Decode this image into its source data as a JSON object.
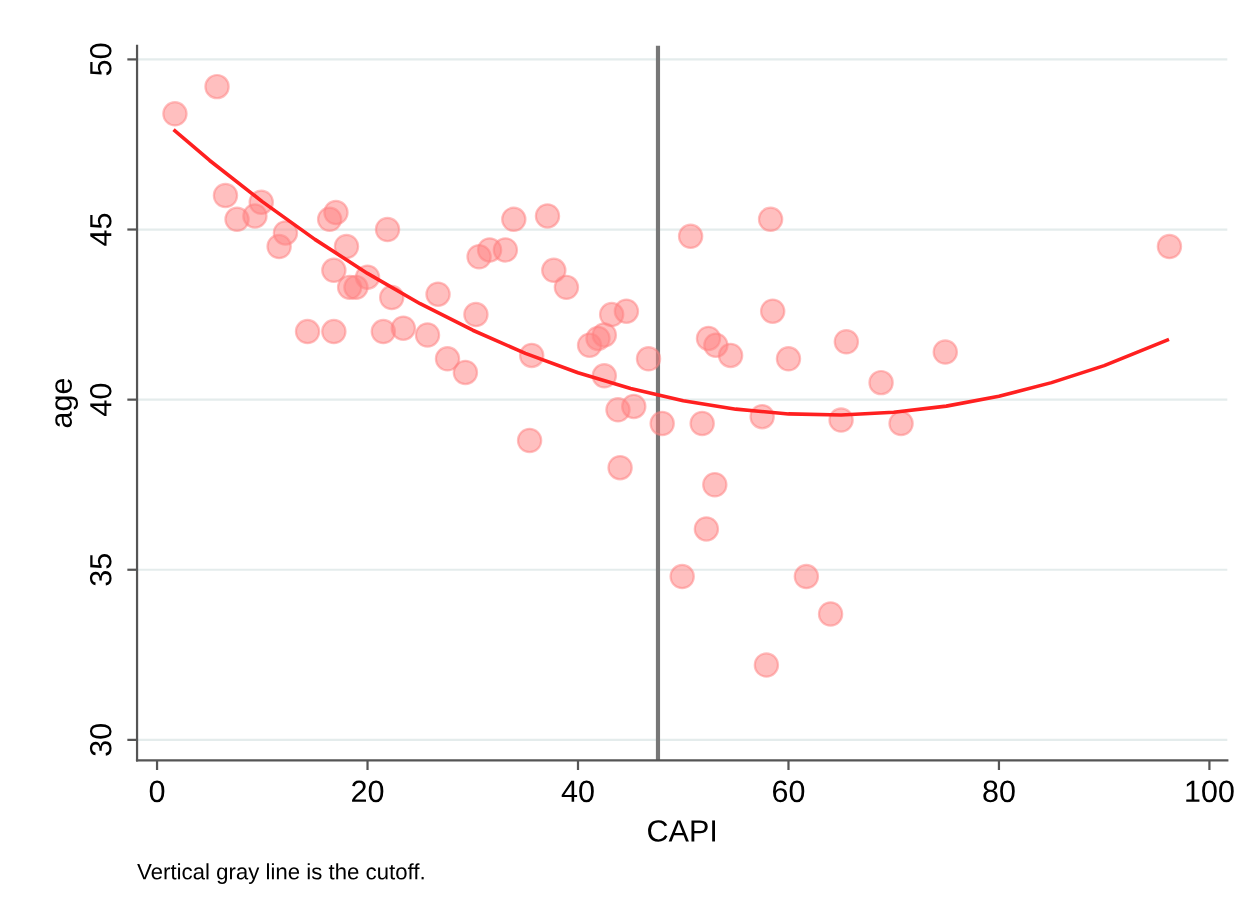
{
  "chart_data": {
    "type": "scatter",
    "xlabel": "CAPI",
    "ylabel": "age",
    "xlim": [
      -1.9,
      101.7
    ],
    "ylim": [
      29.4,
      50.4
    ],
    "xticks": [
      0,
      20,
      40,
      60,
      80,
      100
    ],
    "yticks": [
      30,
      35,
      40,
      45,
      50
    ],
    "grid": "y",
    "ref_lines": [
      {
        "axis": "x",
        "value": 47.6,
        "color": "#777777"
      }
    ],
    "annotations": [
      "Vertical gray line is the cutoff."
    ],
    "series": [
      {
        "color": "#ff8080",
        "marker": "circle",
        "x": [
          1.7,
          5.7,
          6.5,
          7.6,
          9.3,
          9.9,
          11.6,
          12.2,
          14.3,
          16.4,
          17,
          16.8,
          16.8,
          18,
          18.3,
          18.9,
          20,
          21.9,
          21.5,
          22.3,
          23.4,
          25.7,
          26.7,
          27.6,
          29.3,
          30.3,
          30.6,
          31.6,
          33.1,
          33.9,
          35.6,
          35.4,
          37.1,
          37.7,
          38.9,
          41.1,
          41.9,
          42.5,
          42.5,
          43.2,
          44.6,
          43.8,
          45.3,
          44,
          46.7,
          48,
          50.7,
          49.9,
          51.8,
          52.2,
          52.4,
          53.1,
          53,
          54.5,
          58.3,
          58.5,
          57.5,
          57.9,
          60,
          61.7,
          64,
          65,
          65.5,
          68.8,
          70.7,
          74.9,
          96.2
        ],
        "values": [
          48.4,
          49.2,
          46.0,
          45.3,
          45.4,
          45.8,
          44.5,
          44.9,
          42.0,
          45.3,
          45.5,
          43.8,
          42.0,
          44.5,
          43.3,
          43.3,
          43.6,
          45.0,
          42.0,
          43.0,
          42.1,
          41.9,
          43.1,
          41.2,
          40.8,
          42.5,
          44.2,
          44.4,
          44.4,
          45.3,
          41.3,
          38.8,
          45.4,
          43.8,
          43.3,
          41.6,
          41.8,
          41.9,
          40.7,
          42.5,
          42.6,
          39.7,
          39.8,
          38.0,
          41.2,
          39.3,
          44.8,
          34.8,
          39.3,
          36.2,
          41.8,
          41.6,
          37.5,
          41.3,
          45.3,
          42.6,
          39.5,
          32.2,
          41.2,
          34.8,
          33.7,
          39.4,
          41.7,
          40.5,
          39.3,
          41.4,
          44.5
        ]
      },
      {
        "type": "line",
        "color": "#ff2020",
        "line_style": "solid",
        "marker": "none",
        "x": [
          1.7,
          5,
          10,
          15,
          20,
          25,
          30,
          35,
          40,
          45,
          50,
          55,
          60,
          65,
          70,
          75,
          80,
          85,
          90,
          96
        ],
        "values": [
          47.9,
          47.03,
          45.82,
          44.71,
          43.71,
          42.82,
          42.04,
          41.36,
          40.79,
          40.33,
          39.97,
          39.72,
          39.58,
          39.55,
          39.63,
          39.81,
          40.1,
          40.5,
          41.0,
          41.75
        ]
      }
    ]
  }
}
